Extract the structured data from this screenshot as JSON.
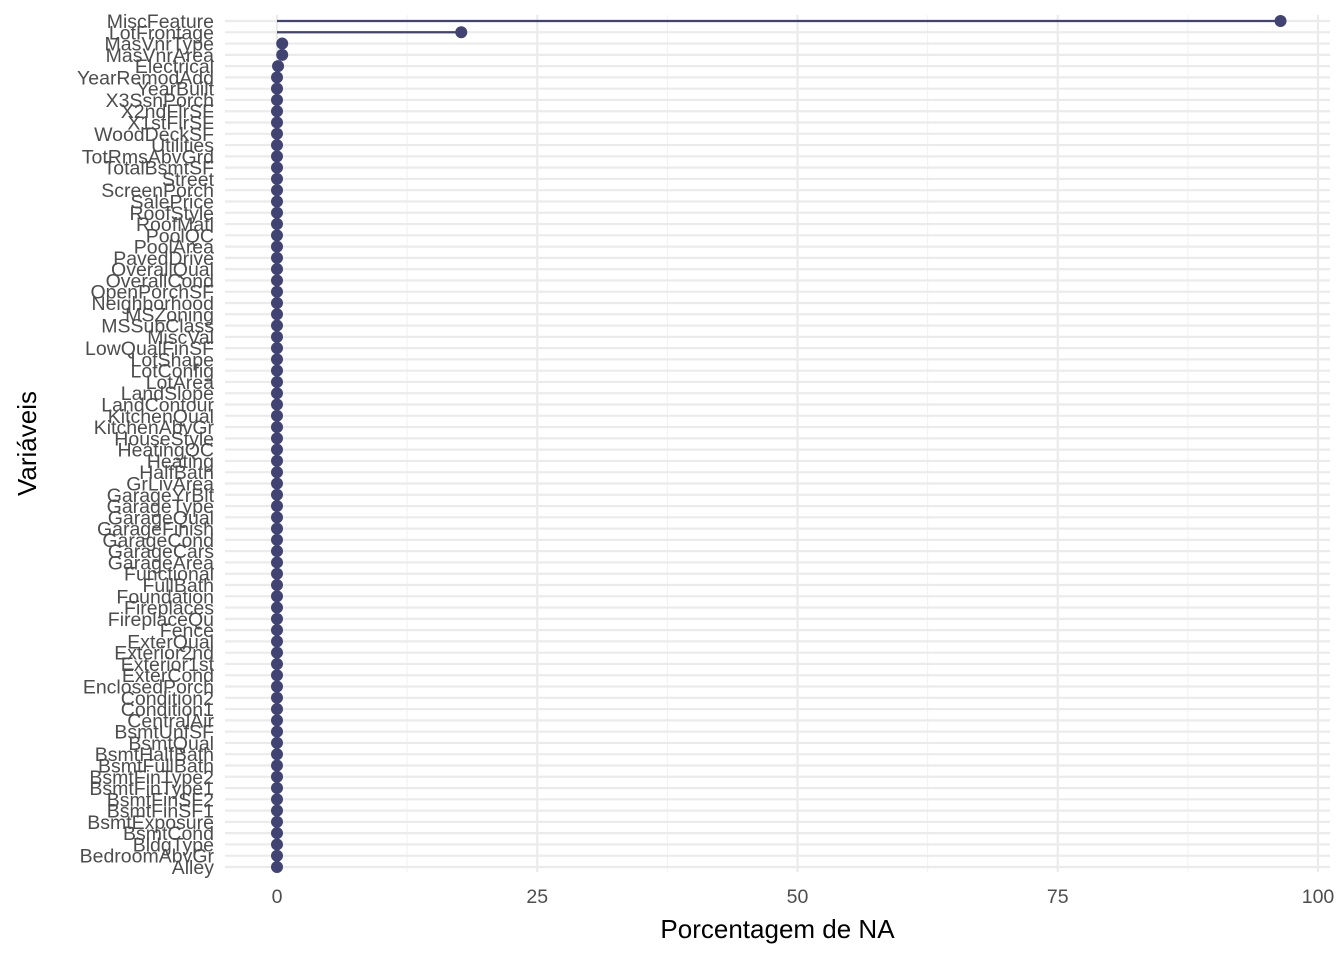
{
  "chart_data": {
    "type": "lollipop",
    "orientation": "horizontal",
    "xlabel": "Porcentagem de NA",
    "ylabel": "Variáveis",
    "xlim": [
      -12,
      100
    ],
    "x_ticks": [
      0,
      25,
      50,
      75,
      100
    ],
    "grid": true,
    "legend": "none",
    "series_color": "#414472",
    "categories": [
      "MiscFeature",
      "LotFrontage",
      "MasVnrType",
      "MasVnrArea",
      "Electrical",
      "YearRemodAdd",
      "YearBuilt",
      "X3SsnPorch",
      "X2ndFlrSF",
      "X1stFlrSF",
      "WoodDeckSF",
      "Utilities",
      "TotRmsAbvGrd",
      "TotalBsmtSF",
      "Street",
      "ScreenPorch",
      "SalePrice",
      "RoofStyle",
      "RoofMatl",
      "PoolQC",
      "PoolArea",
      "PavedDrive",
      "OverallQual",
      "OverallCond",
      "OpenPorchSF",
      "Neighborhood",
      "MSZoning",
      "MSSubClass",
      "MiscVal",
      "LowQualFinSF",
      "LotShape",
      "LotConfig",
      "LotArea",
      "LandSlope",
      "LandContour",
      "KitchenQual",
      "KitchenAbvGr",
      "HouseStyle",
      "HeatingQC",
      "Heating",
      "HalfBath",
      "GrLivArea",
      "GarageYrBlt",
      "GarageType",
      "GarageQual",
      "GarageFinish",
      "GarageCond",
      "GarageCars",
      "GarageArea",
      "Functional",
      "FullBath",
      "Foundation",
      "Fireplaces",
      "FireplaceQu",
      "Fence",
      "ExterQual",
      "Exterior2nd",
      "Exterior1st",
      "ExterCond",
      "EnclosedPorch",
      "Condition2",
      "Condition1",
      "CentralAir",
      "BsmtUnfSF",
      "BsmtQual",
      "BsmtHalfBath",
      "BsmtFullBath",
      "BsmtFinType2",
      "BsmtFinType1",
      "BsmtFinSF2",
      "BsmtFinSF1",
      "BsmtExposure",
      "BsmtCond",
      "BldgType",
      "BedroomAbvGr",
      "Alley"
    ],
    "values": [
      96.4,
      17.7,
      0.5,
      0.5,
      0.1,
      0,
      0,
      0,
      0,
      0,
      0,
      0,
      0,
      0,
      0,
      0,
      0,
      0,
      0,
      0,
      0,
      0,
      0,
      0,
      0,
      0,
      0,
      0,
      0,
      0,
      0,
      0,
      0,
      0,
      0,
      0,
      0,
      0,
      0,
      0,
      0,
      0,
      0,
      0,
      0,
      0,
      0,
      0,
      0,
      0,
      0,
      0,
      0,
      0,
      0,
      0,
      0,
      0,
      0,
      0,
      0,
      0,
      0,
      0,
      0,
      0,
      0,
      0,
      0,
      0,
      0,
      0,
      0,
      0,
      0,
      0
    ]
  }
}
